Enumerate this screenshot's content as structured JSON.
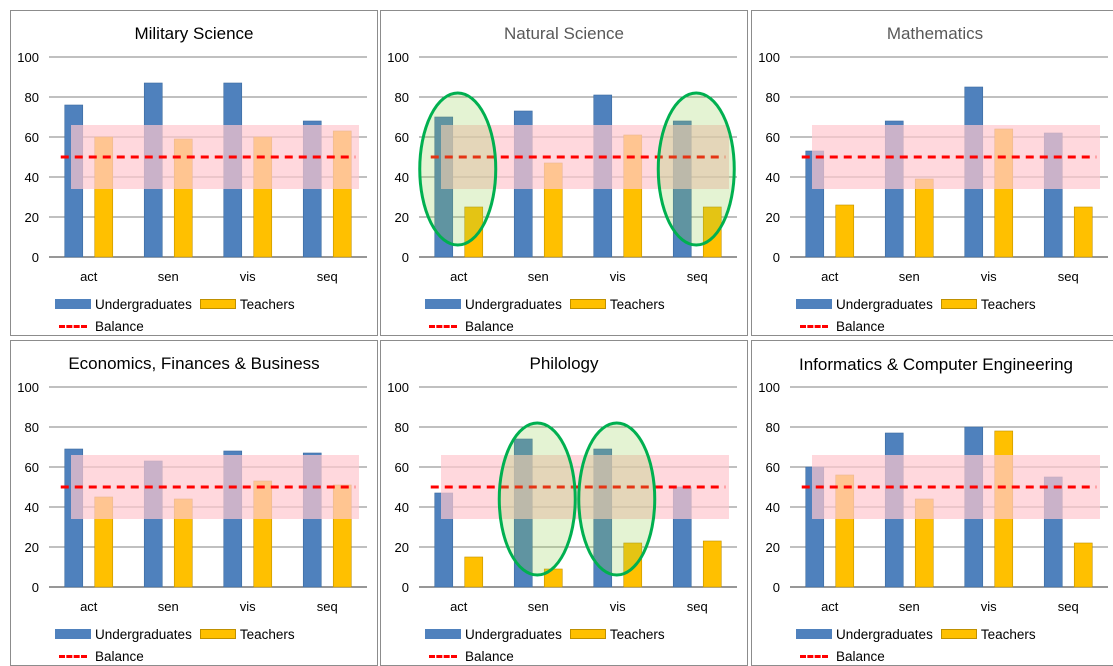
{
  "legend": {
    "undergraduates": "Undergraduates",
    "teachers": "Teachers",
    "balance": "Balance"
  },
  "colors": {
    "undergraduates": "#4f81bd",
    "teachers": "#ffc000",
    "balance": "#ff0000",
    "band": "#ffc7ce",
    "highlight": "#92d050"
  },
  "chart_data": [
    {
      "type": "bar",
      "title": "Military Science",
      "categories": [
        "act",
        "sen",
        "vis",
        "seq"
      ],
      "ylim": [
        0,
        100
      ],
      "yticks": [
        0,
        20,
        40,
        60,
        80,
        100
      ],
      "band": [
        34,
        66
      ],
      "balance": 50,
      "series": [
        {
          "name": "Undergraduates",
          "values": [
            76,
            87,
            87,
            68
          ]
        },
        {
          "name": "Teachers",
          "values": [
            60,
            59,
            60,
            63
          ]
        }
      ],
      "highlight_categories": []
    },
    {
      "type": "bar",
      "title": "Natural Science",
      "categories": [
        "act",
        "sen",
        "vis",
        "seq"
      ],
      "ylim": [
        0,
        100
      ],
      "yticks": [
        0,
        20,
        40,
        60,
        80,
        100
      ],
      "band": [
        34,
        66
      ],
      "balance": 50,
      "series": [
        {
          "name": "Undergraduates",
          "values": [
            70,
            73,
            81,
            68
          ]
        },
        {
          "name": "Teachers",
          "values": [
            25,
            47,
            61,
            25
          ]
        }
      ],
      "highlight_categories": [
        0,
        3
      ]
    },
    {
      "type": "bar",
      "title": "Mathematics",
      "categories": [
        "act",
        "sen",
        "vis",
        "seq"
      ],
      "ylim": [
        0,
        100
      ],
      "yticks": [
        0,
        20,
        40,
        60,
        80,
        100
      ],
      "band": [
        34,
        66
      ],
      "balance": 50,
      "series": [
        {
          "name": "Undergraduates",
          "values": [
            53,
            68,
            85,
            62
          ]
        },
        {
          "name": "Teachers",
          "values": [
            26,
            39,
            64,
            25
          ]
        }
      ],
      "highlight_categories": []
    },
    {
      "type": "bar",
      "title": "Economics, Finances & Business",
      "categories": [
        "act",
        "sen",
        "vis",
        "seq"
      ],
      "ylim": [
        0,
        100
      ],
      "yticks": [
        0,
        20,
        40,
        60,
        80,
        100
      ],
      "band": [
        34,
        66
      ],
      "balance": 50,
      "series": [
        {
          "name": "Undergraduates",
          "values": [
            69,
            63,
            68,
            67
          ]
        },
        {
          "name": "Teachers",
          "values": [
            45,
            44,
            53,
            51
          ]
        }
      ],
      "highlight_categories": []
    },
    {
      "type": "bar",
      "title": "Philology",
      "categories": [
        "act",
        "sen",
        "vis",
        "seq"
      ],
      "ylim": [
        0,
        100
      ],
      "yticks": [
        0,
        20,
        40,
        60,
        80,
        100
      ],
      "band": [
        34,
        66
      ],
      "balance": 50,
      "series": [
        {
          "name": "Undergraduates",
          "values": [
            47,
            74,
            69,
            50
          ]
        },
        {
          "name": "Teachers",
          "values": [
            15,
            9,
            22,
            23
          ]
        }
      ],
      "highlight_categories": [
        1,
        2
      ]
    },
    {
      "type": "bar",
      "title": "Informatics & Computer Engineering",
      "categories": [
        "act",
        "sen",
        "vis",
        "seq"
      ],
      "ylim": [
        0,
        100
      ],
      "yticks": [
        0,
        20,
        40,
        60,
        80,
        100
      ],
      "band": [
        34,
        66
      ],
      "balance": 50,
      "series": [
        {
          "name": "Undergraduates",
          "values": [
            60,
            77,
            80,
            55
          ]
        },
        {
          "name": "Teachers",
          "values": [
            56,
            44,
            78,
            22
          ]
        }
      ],
      "highlight_categories": []
    }
  ]
}
